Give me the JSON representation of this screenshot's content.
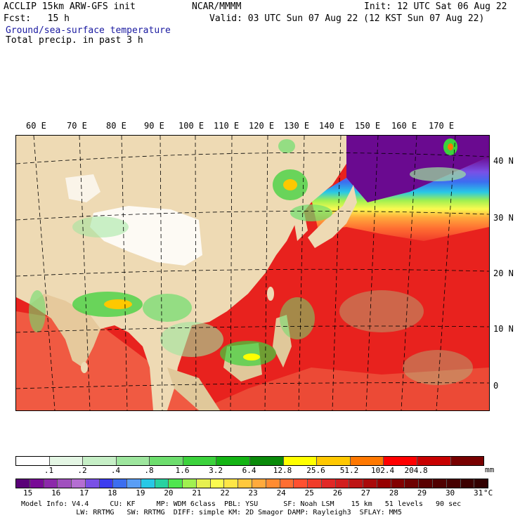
{
  "header": {
    "model": "ACCLIP 15km ARW-GFS init",
    "org": "NCAR/MMMM",
    "init": "Init: 12 UTC Sat 06 Aug 22",
    "fcst": "Fcst:   15 h",
    "valid": "Valid: 03 UTC Sun 07 Aug 22 (12 KST Sun 07 Aug 22)",
    "field1": "Ground/sea-surface temperature",
    "field2": "Total precip. in past 3 h"
  },
  "map": {
    "lon_labels": [
      "60 E",
      "70 E",
      "80 E",
      "90 E",
      "100 E",
      "110 E",
      "120 E",
      "130 E",
      "140 E",
      "150 E",
      "160 E",
      "170 E"
    ],
    "lat_labels": [
      "40 N",
      "30 N",
      "20 N",
      "10 N",
      "0"
    ],
    "colors": {
      "land": "#eedab4",
      "ocean_warm": "#e8221e",
      "ocean_cool": "#f06a4a",
      "snow": "#ffffff",
      "cold_sea": "#6a0a90"
    }
  },
  "precip_scale": {
    "unit": "mm",
    "labels": [
      ".1",
      ".2",
      ".4",
      ".8",
      "1.6",
      "3.2",
      "6.4",
      "12.8",
      "25.6",
      "51.2",
      "102.4",
      "204.8"
    ],
    "colors": [
      "#ffffff",
      "#e4f6e4",
      "#c6efc6",
      "#9ee69e",
      "#6ede6e",
      "#3cd23c",
      "#14b414",
      "#0a8a0a",
      "#ffff00",
      "#ffc800",
      "#ff7800",
      "#ff0000",
      "#c80000",
      "#780000"
    ]
  },
  "temp_scale": {
    "unit": "°C",
    "labels": [
      "15",
      "16",
      "17",
      "18",
      "19",
      "20",
      "21",
      "22",
      "23",
      "24",
      "25",
      "26",
      "27",
      "28",
      "29",
      "30",
      "31"
    ],
    "colors": [
      "#5a0078",
      "#780a96",
      "#8c28aa",
      "#a050be",
      "#b46ed2",
      "#7a50e6",
      "#3c3cf0",
      "#3c6ef0",
      "#5a9ef5",
      "#28c8e6",
      "#28d2a0",
      "#50e650",
      "#a0f050",
      "#e6f050",
      "#fafa50",
      "#ffe646",
      "#ffc83c",
      "#ffaa3c",
      "#ff8c32",
      "#ff6e32",
      "#ff5030",
      "#f03c2a",
      "#e12826",
      "#d21e1e",
      "#be1414",
      "#aa0a0a",
      "#960000",
      "#820000",
      "#6e0000",
      "#5a0000",
      "#500000",
      "#460000",
      "#3c0000",
      "#320000"
    ]
  },
  "footer": {
    "line1": "Model Info: V4.4     CU: KF     MP: WDM 6class  PBL: YSU      SF: Noah LSM    15 km   51 levels   90 sec",
    "line2": "             LW: RRTMG   SW: RRTMG  DIFF: simple KM: 2D Smagor DAMP: Rayleigh3  SFLAY: MM5"
  }
}
